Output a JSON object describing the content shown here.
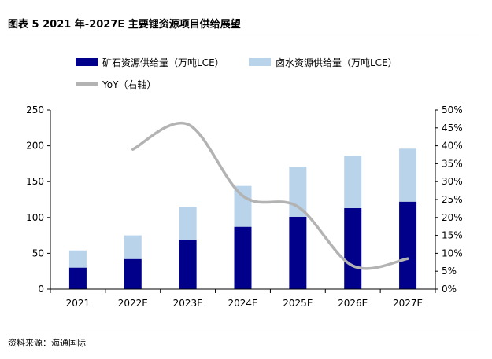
{
  "header": {
    "title": "图表 5 2021 年-2027E 主要锂资源项目供给展望"
  },
  "footer": {
    "source": "资料来源：海通国际"
  },
  "colors": {
    "ore": "#00008b",
    "brine": "#b8d3ea",
    "yoy": "#b3b3b3",
    "axis": "#000000"
  },
  "chart_data": {
    "type": "bar",
    "stacked": true,
    "title": "图表 5 2021 年-2027E 主要锂资源项目供给展望",
    "categories": [
      "2021",
      "2022E",
      "2023E",
      "2024E",
      "2025E",
      "2026E",
      "2027E"
    ],
    "series": [
      {
        "name": "矿石资源供给量（万吨LCE）",
        "axis": "left",
        "values": [
          30,
          42,
          69,
          87,
          101,
          113,
          122
        ]
      },
      {
        "name": "卤水资源供给量（万吨LCE）",
        "axis": "left",
        "values": [
          24,
          33,
          46,
          57,
          70,
          73,
          74
        ]
      },
      {
        "name": "YoY（右轴）",
        "type": "line",
        "axis": "right",
        "values": [
          null,
          0.39,
          0.46,
          0.26,
          0.23,
          0.065,
          0.085
        ]
      }
    ],
    "y_left": {
      "min": 0,
      "max": 250,
      "ticks": [
        "0",
        "50",
        "100",
        "150",
        "200",
        "250"
      ]
    },
    "y_right": {
      "min": 0,
      "max": 0.5,
      "ticks": [
        "0%",
        "5%",
        "10%",
        "15%",
        "20%",
        "25%",
        "30%",
        "35%",
        "40%",
        "45%",
        "50%"
      ]
    },
    "legend_position": "top",
    "grid": false
  }
}
